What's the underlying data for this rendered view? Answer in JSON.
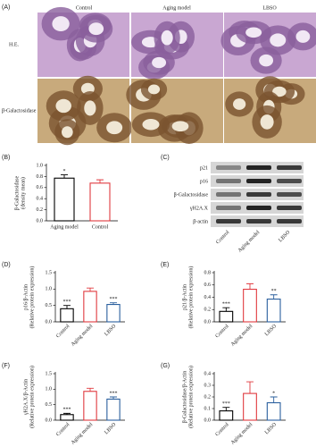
{
  "panel_a": {
    "label": "(A)",
    "columns": [
      "Control",
      "Aging model",
      "LBSO"
    ],
    "rows": [
      "H.E.",
      "β-Galactosidase"
    ]
  },
  "panel_c": {
    "label": "(C)",
    "bands": [
      "p21",
      "p16",
      "β-Galactosidase",
      "γH2A.X",
      "β-actin"
    ],
    "lanes": [
      "Control",
      "Aging model",
      "LBSO"
    ]
  },
  "chart_data": [
    {
      "type": "bar",
      "panel": "(B)",
      "ylabel": [
        "β-Galactosidase",
        "(density mean)"
      ],
      "categories": [
        "Aging model",
        "Control"
      ],
      "values": [
        0.77,
        0.68
      ],
      "errors": [
        0.06,
        0.06
      ],
      "significance": [
        "*",
        null
      ],
      "colors": [
        "#000000",
        "#e0393e"
      ],
      "ylim": [
        0,
        1.0
      ],
      "yticks": [
        {
          "value": 0,
          "label": "0.0"
        },
        0.2,
        0.4,
        0.6,
        0.8,
        {
          "value": 1,
          "label": "1.0"
        }
      ]
    },
    {
      "type": "bar",
      "panel": "(D)",
      "ylabel": [
        "p16/β-Actin",
        "(Relative protein expression)"
      ],
      "categories": [
        "Control",
        "Aging model",
        "LBSO"
      ],
      "values": [
        0.4,
        0.93,
        0.53
      ],
      "errors": [
        0.1,
        0.1,
        0.05
      ],
      "significance": [
        "***",
        null,
        "***"
      ],
      "colors": [
        "#000000",
        "#e0393e",
        "#2a5f9e"
      ],
      "ylim": [
        0,
        1.5
      ],
      "yticks": [
        {
          "value": 0,
          "label": "0.0"
        },
        0.5,
        {
          "value": 1,
          "label": "1.0"
        },
        1.5
      ]
    },
    {
      "type": "bar",
      "panel": "(E)",
      "ylabel": [
        "p21/β-Actin",
        "(Relative protein expression)"
      ],
      "categories": [
        "Control",
        "Aging model",
        "LBSO"
      ],
      "values": [
        0.17,
        0.53,
        0.37
      ],
      "errors": [
        0.06,
        0.09,
        0.07
      ],
      "significance": [
        "***",
        null,
        "**"
      ],
      "colors": [
        "#000000",
        "#e0393e",
        "#2a5f9e"
      ],
      "ylim": [
        0,
        0.8
      ],
      "yticks": [
        {
          "value": 0,
          "label": "0.0"
        },
        0.2,
        0.4,
        0.6,
        0.8
      ]
    },
    {
      "type": "bar",
      "panel": "(F)",
      "ylabel": [
        "γH2A.X/β-Actin",
        "(Relative protein expression)"
      ],
      "categories": [
        "Control",
        "Aging model",
        "LBSO"
      ],
      "values": [
        0.18,
        0.93,
        0.68
      ],
      "errors": [
        0.04,
        0.1,
        0.07
      ],
      "significance": [
        "***",
        null,
        "***"
      ],
      "colors": [
        "#000000",
        "#e0393e",
        "#2a5f9e"
      ],
      "ylim": [
        0,
        1.5
      ],
      "yticks": [
        {
          "value": 0,
          "label": "0.0"
        },
        0.5,
        {
          "value": 1,
          "label": "1.0"
        },
        1.5
      ]
    },
    {
      "type": "bar",
      "panel": "(G)",
      "ylabel": [
        "β-Galactosidase/β-Actin",
        "(Relative protein expression)"
      ],
      "categories": [
        "Control",
        "Aging model",
        "LBSO"
      ],
      "values": [
        0.08,
        0.23,
        0.15
      ],
      "errors": [
        0.03,
        0.1,
        0.05
      ],
      "significance": [
        "***",
        null,
        "*"
      ],
      "colors": [
        "#000000",
        "#e0393e",
        "#2a5f9e"
      ],
      "ylim": [
        0,
        0.4
      ],
      "yticks": [
        {
          "value": 0,
          "label": "0.0"
        },
        0.1,
        0.2,
        0.3,
        0.4
      ]
    }
  ]
}
